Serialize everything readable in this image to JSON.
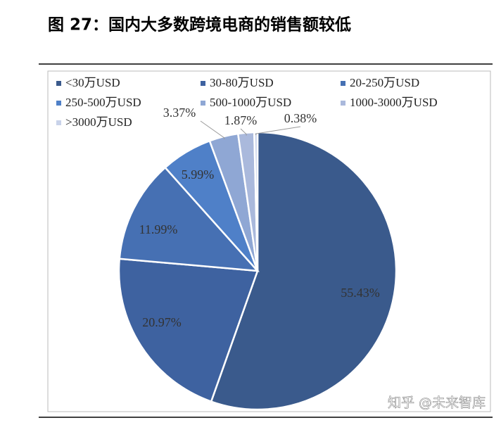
{
  "chart_data": {
    "type": "pie",
    "title": "图 27：国内大多数跨境电商的销售额较低",
    "categories": [
      "<30万USD",
      "30-80万USD",
      "20-250万USD",
      "250-500万USD",
      "500-1000万USD",
      "1000-3000万USD",
      ">3000万USD"
    ],
    "values": [
      55.43,
      20.97,
      11.99,
      5.99,
      3.37,
      1.87,
      0.38
    ],
    "value_labels": [
      "55.43%",
      "20.97%",
      "11.99%",
      "5.99%",
      "3.37%",
      "1.87%",
      "0.38%"
    ],
    "colors": [
      "#3a5a8c",
      "#3e62a0",
      "#4670b3",
      "#4f80c8",
      "#8fa7d4",
      "#aab9dc",
      "#c9d3ea"
    ],
    "watermark": "知乎 @未来智库"
  }
}
